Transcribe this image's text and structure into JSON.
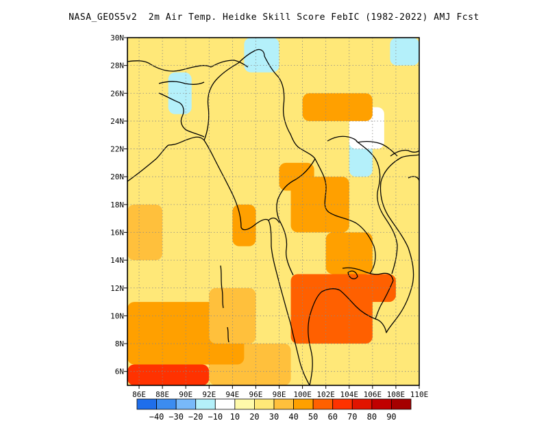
{
  "chart_data": {
    "type": "heatmap",
    "title": "NASA_GEOS5v2  2m Air Temp. Heidke Skill Score FebIC (1982-2022) AMJ Fcst",
    "xlabel": "",
    "ylabel": "",
    "xlim": [
      85,
      110
    ],
    "ylim": [
      5,
      30
    ],
    "x_ticks": [
      "86E",
      "88E",
      "90E",
      "92E",
      "94E",
      "96E",
      "98E",
      "100E",
      "102E",
      "104E",
      "106E",
      "108E",
      "110E"
    ],
    "y_ticks": [
      "6N",
      "8N",
      "10N",
      "12N",
      "14N",
      "16N",
      "18N",
      "20N",
      "22N",
      "24N",
      "26N",
      "28N",
      "30N"
    ],
    "grid": "dotted",
    "colorbar": {
      "placement": "bottom",
      "levels": [
        -50,
        -40,
        -30,
        -20,
        -10,
        10,
        20,
        30,
        40,
        50,
        60,
        70,
        80,
        90,
        100
      ],
      "labels": [
        "-40",
        "-30",
        "-20",
        "-10",
        "10",
        "20",
        "30",
        "40",
        "50",
        "60",
        "70",
        "80",
        "90"
      ],
      "colors": [
        "#1e6eeb",
        "#3c8cf0",
        "#78b9fa",
        "#b4f0fa",
        "#ffffff",
        "#fffaaa",
        "#ffe878",
        "#ffc03c",
        "#ffa000",
        "#ff6000",
        "#ff3200",
        "#e11400",
        "#c00000",
        "#a50000"
      ]
    },
    "regions": [
      {
        "lat": [
          5,
          6.5
        ],
        "lon": [
          85,
          92
        ],
        "score": 65
      },
      {
        "lat": [
          5,
          8
        ],
        "lon": [
          92,
          99
        ],
        "score": 35
      },
      {
        "lat": [
          6.5,
          11
        ],
        "lon": [
          85,
          95
        ],
        "score": 45
      },
      {
        "lat": [
          8,
          12
        ],
        "lon": [
          92,
          96
        ],
        "score": 35
      },
      {
        "lat": [
          9,
          11
        ],
        "lon": [
          100,
          104
        ],
        "score": 65
      },
      {
        "lat": [
          8,
          13
        ],
        "lon": [
          99,
          106
        ],
        "score": 50
      },
      {
        "lat": [
          11,
          13
        ],
        "lon": [
          105,
          108
        ],
        "score": 55
      },
      {
        "lat": [
          13,
          16
        ],
        "lon": [
          102,
          106
        ],
        "score": 40
      },
      {
        "lat": [
          16,
          20
        ],
        "lon": [
          99,
          104
        ],
        "score": 40
      },
      {
        "lat": [
          19,
          21
        ],
        "lon": [
          98,
          101
        ],
        "score": 40
      },
      {
        "lat": [
          20,
          23
        ],
        "lon": [
          104,
          106
        ],
        "score": -15
      },
      {
        "lat": [
          22,
          25
        ],
        "lon": [
          104,
          107
        ],
        "score": 0
      },
      {
        "lat": [
          24,
          26
        ],
        "lon": [
          100,
          106
        ],
        "score": 40
      },
      {
        "lat": [
          24.5,
          27.5
        ],
        "lon": [
          88.5,
          90.5
        ],
        "score": -15
      },
      {
        "lat": [
          27.5,
          30
        ],
        "lon": [
          95,
          98
        ],
        "score": -15
      },
      {
        "lat": [
          28,
          30
        ],
        "lon": [
          107.5,
          110
        ],
        "score": -15
      },
      {
        "lat": [
          15,
          18
        ],
        "lon": [
          94,
          96
        ],
        "score": 40
      },
      {
        "lat": [
          14,
          18
        ],
        "lon": [
          85,
          88
        ],
        "score": 35
      }
    ]
  }
}
